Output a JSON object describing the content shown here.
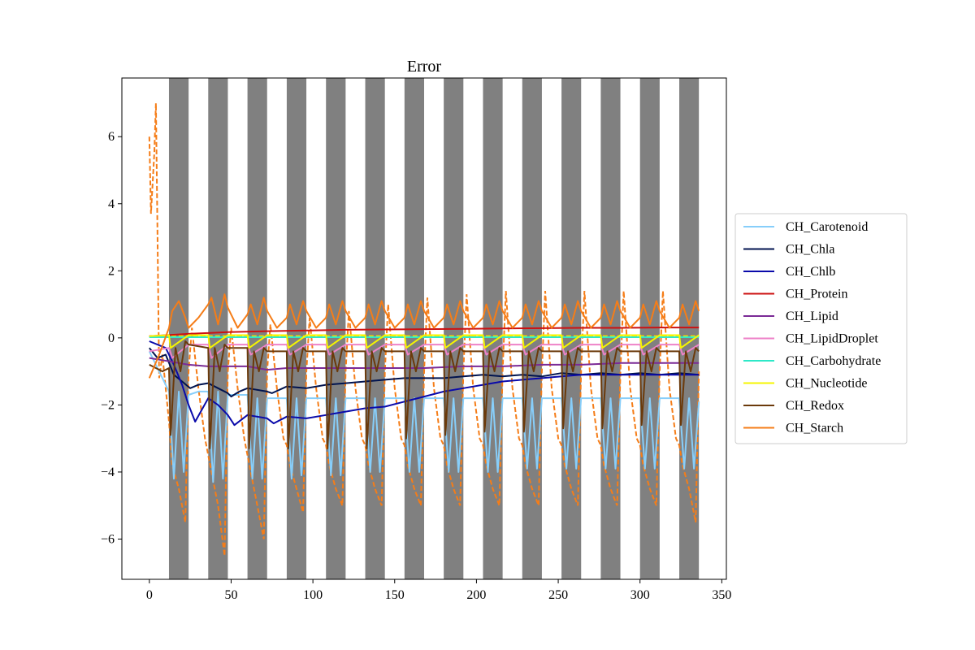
{
  "chart_data": {
    "type": "line",
    "title": "Error",
    "xlabel": "",
    "ylabel": "",
    "xlim": [
      -16.8,
      352.8
    ],
    "ylim": [
      -7.2,
      7.75
    ],
    "xticks": [
      0,
      50,
      100,
      150,
      200,
      250,
      300,
      350
    ],
    "yticks": [
      -6,
      -4,
      -2,
      0,
      2,
      4,
      6
    ],
    "grid": false,
    "legend_position": "center-right, outside plot",
    "dark_periods": [
      [
        12,
        24
      ],
      [
        36,
        48
      ],
      [
        60,
        72
      ],
      [
        84,
        96
      ],
      [
        108,
        120
      ],
      [
        132,
        144
      ],
      [
        156,
        168
      ],
      [
        180,
        192
      ],
      [
        204,
        216
      ],
      [
        228,
        240
      ],
      [
        252,
        264
      ],
      [
        276,
        288
      ],
      [
        300,
        312
      ],
      [
        324,
        336
      ]
    ],
    "dark_period_color": "#808080",
    "series": [
      {
        "name": "CH_Carotenoid",
        "color": "#87cefa",
        "x": [
          0,
          12,
          15,
          18,
          21,
          24,
          30,
          36,
          39,
          42,
          45,
          48,
          60,
          63,
          66,
          69,
          72,
          84,
          87,
          90,
          93,
          96,
          108,
          111,
          114,
          117,
          120,
          132,
          135,
          138,
          141,
          144,
          156,
          159,
          162,
          165,
          168,
          180,
          183,
          186,
          189,
          192,
          204,
          207,
          210,
          213,
          216,
          228,
          231,
          234,
          237,
          240,
          252,
          255,
          258,
          261,
          264,
          276,
          279,
          282,
          285,
          288,
          300,
          303,
          306,
          309,
          312,
          324,
          327,
          330,
          333,
          336
        ],
        "y": [
          -0.4,
          -1.6,
          -4.2,
          -1.6,
          -4.0,
          -1.7,
          -1.6,
          -1.6,
          -4.3,
          -1.6,
          -4.2,
          -1.7,
          -1.7,
          -4.2,
          -1.8,
          -4.2,
          -1.8,
          -1.8,
          -4.2,
          -1.8,
          -4.1,
          -1.8,
          -1.8,
          -4.1,
          -1.8,
          -4.1,
          -1.8,
          -1.8,
          -4.0,
          -1.8,
          -4.0,
          -1.8,
          -1.8,
          -4.0,
          -1.8,
          -4.0,
          -1.8,
          -1.8,
          -4.0,
          -1.8,
          -4.0,
          -1.8,
          -1.8,
          -4.0,
          -1.8,
          -4.0,
          -1.8,
          -1.8,
          -3.9,
          -1.8,
          -3.9,
          -1.8,
          -1.8,
          -3.9,
          -1.8,
          -3.9,
          -1.8,
          -1.8,
          -3.9,
          -1.8,
          -3.9,
          -1.8,
          -1.8,
          -3.9,
          -1.8,
          -3.9,
          -1.8,
          -1.8,
          -3.9,
          -1.8,
          -3.9,
          -1.9
        ]
      },
      {
        "name": "CH_Chla",
        "color": "#00134f",
        "x": [
          0,
          5,
          10,
          15,
          20,
          25,
          30,
          36,
          42,
          48,
          50,
          55,
          60,
          72,
          75,
          84,
          96,
          108,
          120,
          132,
          144,
          156,
          168,
          180,
          192,
          204,
          216,
          228,
          240,
          252,
          264,
          276,
          288,
          300,
          312,
          324,
          336
        ],
        "y": [
          -0.3,
          -0.6,
          -0.5,
          -1.1,
          -1.3,
          -1.5,
          -1.4,
          -1.35,
          -1.5,
          -1.65,
          -1.75,
          -1.6,
          -1.5,
          -1.6,
          -1.65,
          -1.45,
          -1.5,
          -1.4,
          -1.35,
          -1.3,
          -1.25,
          -1.2,
          -1.2,
          -1.2,
          -1.15,
          -1.1,
          -1.15,
          -1.1,
          -1.15,
          -1.05,
          -1.1,
          -1.05,
          -1.1,
          -1.05,
          -1.1,
          -1.05,
          -1.1
        ]
      },
      {
        "name": "CH_Chlb",
        "color": "#0a0aaa",
        "x": [
          0,
          10,
          15,
          20,
          24,
          28,
          36,
          42,
          48,
          52,
          60,
          72,
          76,
          84,
          96,
          108,
          120,
          132,
          144,
          156,
          168,
          180,
          192,
          204,
          216,
          228,
          240,
          252,
          264,
          276,
          288,
          300,
          312,
          324,
          336
        ],
        "y": [
          -0.1,
          -0.3,
          -0.8,
          -1.4,
          -2.0,
          -2.5,
          -1.8,
          -2.0,
          -2.3,
          -2.6,
          -2.3,
          -2.4,
          -2.55,
          -2.35,
          -2.4,
          -2.3,
          -2.2,
          -2.1,
          -2.05,
          -1.9,
          -1.75,
          -1.6,
          -1.5,
          -1.4,
          -1.3,
          -1.25,
          -1.2,
          -1.15,
          -1.1,
          -1.1,
          -1.1,
          -1.1,
          -1.1,
          -1.1,
          -1.1
        ]
      },
      {
        "name": "CH_Protein",
        "color": "#cc1111",
        "x": [
          0,
          24,
          48,
          72,
          96,
          120,
          144,
          168,
          192,
          216,
          240,
          264,
          288,
          312,
          336
        ],
        "y": [
          0.05,
          0.12,
          0.17,
          0.2,
          0.22,
          0.24,
          0.25,
          0.26,
          0.27,
          0.28,
          0.29,
          0.3,
          0.3,
          0.31,
          0.31
        ]
      },
      {
        "name": "CH_Lipid",
        "color": "#7b2a96",
        "x": [
          0,
          12,
          24,
          36,
          48,
          60,
          72,
          84,
          96,
          120,
          144,
          168,
          192,
          216,
          240,
          264,
          288,
          312,
          336
        ],
        "y": [
          -0.6,
          -0.7,
          -0.8,
          -0.85,
          -0.85,
          -0.85,
          -0.95,
          -0.9,
          -0.9,
          -0.9,
          -0.9,
          -0.9,
          -0.85,
          -0.85,
          -0.8,
          -0.8,
          -0.75,
          -0.75,
          -0.75
        ]
      },
      {
        "name": "CH_LipidDroplet",
        "color": "#ee82c8",
        "x": [
          0,
          12,
          14,
          24,
          36,
          38,
          48,
          60,
          62,
          72,
          84,
          86,
          96,
          108,
          110,
          120,
          132,
          134,
          144,
          156,
          158,
          168,
          180,
          182,
          192,
          204,
          206,
          216,
          228,
          230,
          240,
          252,
          254,
          264,
          276,
          278,
          288,
          300,
          302,
          312,
          324,
          326,
          336
        ],
        "y": [
          -0.4,
          -0.3,
          -0.6,
          -0.2,
          -0.2,
          -0.6,
          -0.2,
          -0.2,
          -0.5,
          -0.2,
          -0.2,
          -0.5,
          -0.2,
          -0.2,
          -0.5,
          -0.2,
          -0.2,
          -0.5,
          -0.2,
          -0.2,
          -0.5,
          -0.2,
          -0.2,
          -0.5,
          -0.2,
          -0.2,
          -0.5,
          -0.2,
          -0.2,
          -0.5,
          -0.2,
          -0.2,
          -0.5,
          -0.2,
          -0.2,
          -0.5,
          -0.2,
          -0.2,
          -0.5,
          -0.2,
          -0.2,
          -0.5,
          -0.2
        ]
      },
      {
        "name": "CH_Carbohydrate",
        "color": "#2ee8c8",
        "x": [
          0,
          84,
          168,
          252,
          336
        ],
        "y": [
          0.02,
          0.02,
          0.02,
          0.02,
          0.02
        ]
      },
      {
        "name": "CH_Nucleotide",
        "color": "#f5f500",
        "x": [
          0,
          12,
          13,
          24,
          36,
          37,
          48,
          60,
          61,
          72,
          84,
          85,
          96,
          108,
          109,
          120,
          132,
          133,
          144,
          156,
          157,
          168,
          180,
          181,
          192,
          204,
          205,
          216,
          228,
          229,
          240,
          252,
          253,
          264,
          276,
          277,
          288,
          300,
          301,
          312,
          324,
          325,
          336
        ],
        "y": [
          0.05,
          0.08,
          -0.3,
          0.08,
          0.08,
          -0.3,
          0.08,
          0.08,
          -0.3,
          0.08,
          0.08,
          -0.3,
          0.08,
          0.08,
          -0.3,
          0.08,
          0.08,
          -0.3,
          0.08,
          0.08,
          -0.3,
          0.08,
          0.08,
          -0.3,
          0.08,
          0.08,
          -0.3,
          0.08,
          0.08,
          -0.3,
          0.08,
          0.08,
          -0.3,
          0.08,
          0.08,
          -0.3,
          0.08,
          0.08,
          -0.3,
          0.08,
          0.08,
          -0.3,
          0.08
        ]
      },
      {
        "name": "CH_Redox",
        "color": "#6b3a0b",
        "x": [
          0,
          8,
          12,
          13,
          16,
          19,
          22,
          24,
          36,
          37,
          40,
          43,
          46,
          48,
          60,
          61,
          64,
          67,
          70,
          72,
          84,
          85,
          88,
          91,
          94,
          96,
          108,
          109,
          112,
          115,
          118,
          120,
          132,
          133,
          136,
          139,
          142,
          144,
          156,
          157,
          160,
          163,
          166,
          168,
          180,
          181,
          184,
          187,
          190,
          192,
          204,
          205,
          208,
          211,
          214,
          216,
          228,
          229,
          232,
          235,
          238,
          240,
          252,
          253,
          256,
          259,
          262,
          264,
          276,
          277,
          280,
          283,
          286,
          288,
          300,
          301,
          304,
          307,
          310,
          312,
          324,
          325,
          328,
          331,
          334,
          336
        ],
        "y": [
          -0.8,
          -1.0,
          -0.9,
          -2.9,
          -0.3,
          -1.0,
          -0.1,
          -0.2,
          -0.3,
          -3.3,
          -0.3,
          -1.0,
          -0.2,
          -0.3,
          -0.3,
          -3.3,
          -0.4,
          -1.0,
          -0.3,
          -0.4,
          -0.4,
          -3.3,
          -0.4,
          -1.0,
          -0.3,
          -0.4,
          -0.4,
          -3.3,
          -0.4,
          -1.0,
          -0.3,
          -0.4,
          -0.4,
          -3.3,
          -0.4,
          -1.0,
          -0.3,
          -0.4,
          -0.4,
          -3.0,
          -0.4,
          -1.0,
          -0.3,
          -0.4,
          -0.4,
          -2.9,
          -0.4,
          -1.0,
          -0.3,
          -0.4,
          -0.4,
          -2.8,
          -0.4,
          -1.0,
          -0.3,
          -0.4,
          -0.4,
          -2.8,
          -0.4,
          -1.0,
          -0.3,
          -0.4,
          -0.4,
          -2.7,
          -0.4,
          -1.0,
          -0.3,
          -0.4,
          -0.4,
          -2.7,
          -0.4,
          -1.0,
          -0.3,
          -0.4,
          -0.4,
          -2.6,
          -0.4,
          -1.0,
          -0.3,
          -0.4,
          -0.4,
          -2.6,
          -0.4,
          -1.0,
          -0.3,
          -0.4
        ]
      },
      {
        "name": "CH_Starch",
        "color": "#f57d18",
        "x": [
          0,
          6,
          12,
          14,
          18,
          22,
          24,
          30,
          36,
          38,
          42,
          46,
          48,
          54,
          60,
          62,
          66,
          70,
          72,
          78,
          84,
          86,
          90,
          94,
          96,
          102,
          108,
          110,
          114,
          118,
          120,
          126,
          132,
          134,
          138,
          142,
          144,
          150,
          156,
          158,
          162,
          166,
          168,
          174,
          180,
          182,
          186,
          190,
          192,
          198,
          204,
          206,
          210,
          214,
          216,
          222,
          228,
          230,
          234,
          238,
          240,
          246,
          252,
          254,
          258,
          262,
          264,
          270,
          276,
          278,
          282,
          286,
          288,
          294,
          300,
          302,
          306,
          310,
          312,
          318,
          324,
          326,
          330,
          334,
          336
        ],
        "y": [
          -1.2,
          -0.5,
          0.3,
          0.8,
          1.1,
          0.6,
          0.3,
          0.6,
          1.0,
          1.2,
          0.4,
          1.3,
          0.9,
          0.3,
          0.7,
          1.0,
          0.4,
          1.2,
          0.8,
          0.3,
          0.6,
          1.0,
          0.4,
          1.1,
          0.8,
          0.3,
          0.6,
          1.0,
          0.4,
          1.1,
          0.8,
          0.3,
          0.6,
          1.0,
          0.4,
          1.1,
          0.8,
          0.3,
          0.6,
          1.0,
          0.4,
          1.1,
          0.8,
          0.3,
          0.6,
          1.0,
          0.4,
          1.1,
          0.8,
          0.3,
          0.6,
          1.0,
          0.4,
          1.1,
          0.8,
          0.3,
          0.6,
          1.0,
          0.4,
          1.1,
          0.8,
          0.3,
          0.6,
          1.0,
          0.4,
          1.1,
          0.8,
          0.3,
          0.6,
          1.0,
          0.4,
          1.1,
          0.8,
          0.3,
          0.6,
          1.0,
          0.4,
          1.1,
          0.8,
          0.3,
          0.6,
          1.0,
          0.4,
          1.1,
          0.8
        ]
      }
    ],
    "dashed_series": [
      {
        "color": "#f57d18",
        "x": [
          0,
          1,
          3,
          4,
          5,
          6,
          8,
          10,
          12,
          14,
          18,
          22,
          24,
          26,
          30,
          34,
          36,
          38,
          42,
          46,
          48,
          50,
          54,
          58,
          60,
          62,
          66,
          70,
          72,
          74,
          78,
          82,
          84,
          86,
          90,
          94,
          96,
          98,
          102,
          106,
          108,
          110,
          114,
          118,
          120,
          122,
          126,
          130,
          132,
          134,
          138,
          142,
          144,
          146,
          150,
          154,
          156,
          158,
          162,
          166,
          168,
          170,
          174,
          178,
          180,
          182,
          186,
          190,
          192,
          194,
          198,
          202,
          204,
          206,
          210,
          214,
          216,
          218,
          222,
          226,
          228,
          230,
          234,
          238,
          240,
          242,
          246,
          250,
          252,
          254,
          258,
          262,
          264,
          266,
          270,
          274,
          276,
          278,
          282,
          286,
          288,
          290,
          294,
          298,
          300,
          302,
          306,
          310,
          312,
          314,
          318,
          322,
          324,
          326,
          330,
          334,
          336
        ],
        "y": [
          6.0,
          3.7,
          5.5,
          7.0,
          3.0,
          -1.2,
          -0.5,
          -1.5,
          -2.5,
          -3.8,
          -4.5,
          -5.5,
          -1.0,
          0.3,
          -1.5,
          -3.0,
          -3.5,
          -4.0,
          -5.0,
          -6.5,
          -1.0,
          0.3,
          -1.5,
          -3.0,
          -3.5,
          -4.0,
          -5.0,
          -6.0,
          -1.0,
          0.4,
          -1.5,
          -3.0,
          -3.2,
          -3.8,
          -4.5,
          -5.2,
          -1.0,
          0.6,
          -1.5,
          -3.0,
          -3.2,
          -3.8,
          -4.5,
          -5.0,
          -1.0,
          0.8,
          -1.5,
          -3.0,
          -3.2,
          -3.8,
          -4.5,
          -5.0,
          -1.0,
          1.0,
          -1.5,
          -3.0,
          -3.2,
          -3.8,
          -4.5,
          -5.0,
          -1.0,
          1.2,
          -1.5,
          -3.0,
          -3.2,
          -3.8,
          -4.5,
          -5.0,
          -1.0,
          1.3,
          -1.5,
          -3.0,
          -3.2,
          -3.8,
          -4.5,
          -5.0,
          -1.0,
          1.4,
          -1.5,
          -3.0,
          -3.2,
          -3.8,
          -4.5,
          -5.0,
          -1.0,
          1.4,
          -1.5,
          -3.0,
          -3.2,
          -3.8,
          -4.5,
          -5.0,
          -1.0,
          1.4,
          -1.5,
          -3.0,
          -3.2,
          -3.8,
          -4.5,
          -5.0,
          -1.0,
          1.4,
          -1.5,
          -3.0,
          -3.2,
          -3.8,
          -4.5,
          -5.0,
          -1.0,
          1.4,
          -1.5,
          -3.0,
          -3.2,
          -3.8,
          -4.5,
          -5.5,
          -1.0
        ]
      },
      {
        "color": "#cc1111",
        "x": [
          0,
          336
        ],
        "y": [
          0.05,
          0.05
        ]
      },
      {
        "color": "#2ee8c8",
        "x": [
          0,
          336
        ],
        "y": [
          0.03,
          0.03
        ]
      },
      {
        "color": "#f5f500",
        "x": [
          0,
          336
        ],
        "y": [
          0.05,
          0.05
        ]
      }
    ]
  }
}
